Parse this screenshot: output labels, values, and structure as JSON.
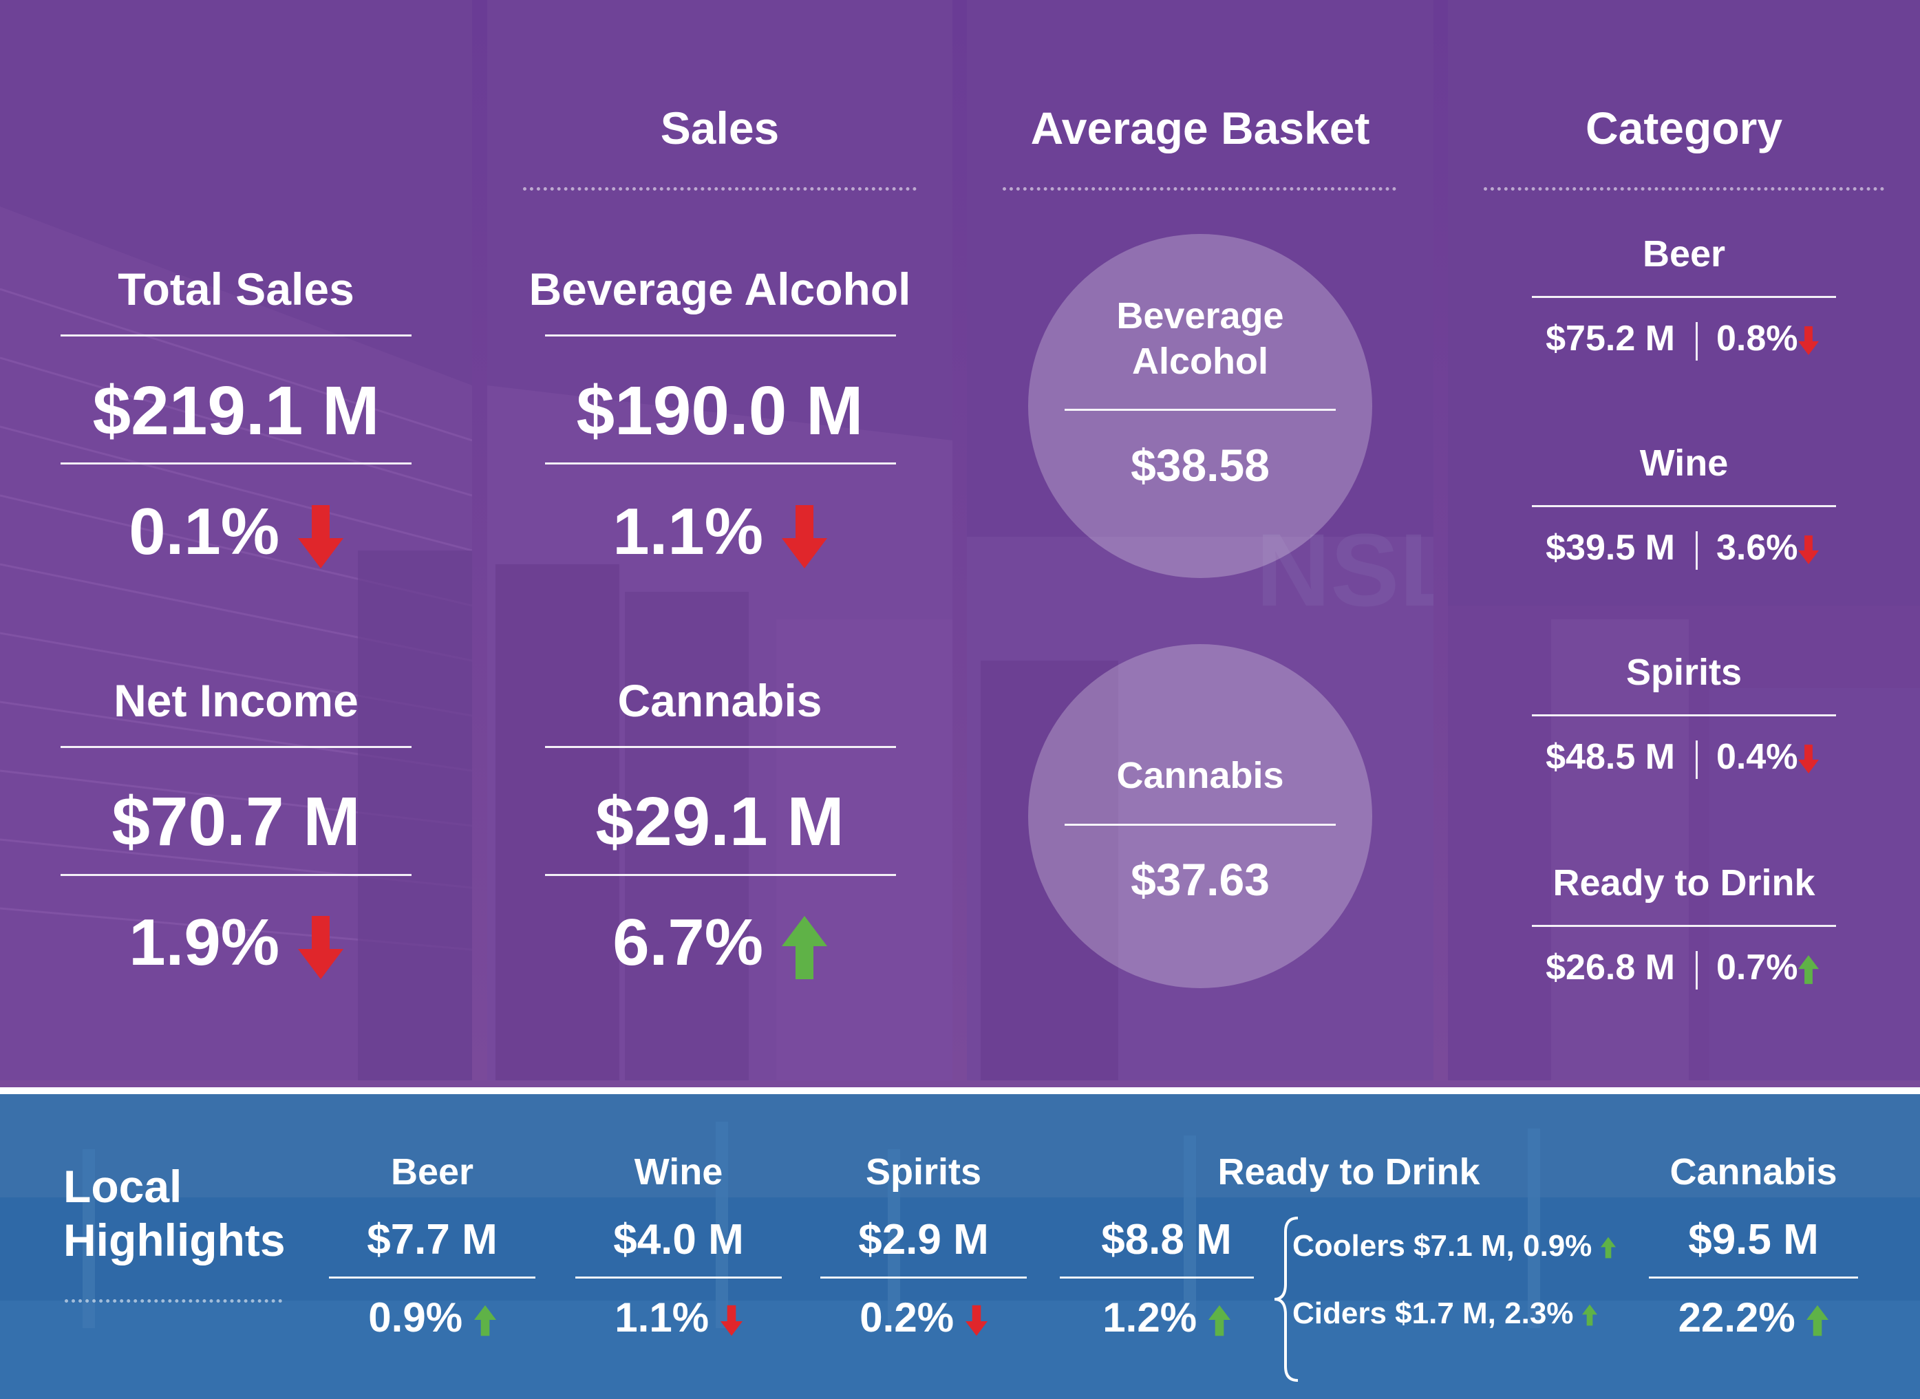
{
  "colors": {
    "purple_panel": "#6d3f96",
    "blue_band": "#2e6aa8",
    "down_arrow": "#e0262b",
    "up_arrow": "#5fb247",
    "divider": "#ffffff"
  },
  "panel1": {
    "total_sales_label": "Total Sales",
    "total_sales_value": "$219.1 M",
    "total_sales_change": "0.1%",
    "total_sales_trend": "down",
    "net_income_label": "Net Income",
    "net_income_value": "$70.7 M",
    "net_income_change": "1.9%",
    "net_income_trend": "down"
  },
  "panel2": {
    "heading": "Sales",
    "bev_label": "Beverage Alcohol",
    "bev_value": "$190.0 M",
    "bev_change": "1.1%",
    "bev_trend": "down",
    "cannabis_label": "Cannabis",
    "cannabis_value": "$29.1 M",
    "cannabis_change": "6.7%",
    "cannabis_trend": "up"
  },
  "panel3": {
    "heading": "Average Basket",
    "bev_label_line1": "Beverage",
    "bev_label_line2": "Alcohol",
    "bev_value": "$38.58",
    "cannabis_label": "Cannabis",
    "cannabis_value": "$37.63"
  },
  "panel4": {
    "heading": "Category",
    "items": [
      {
        "label": "Beer",
        "value": "$75.2 M",
        "change": "0.8%",
        "trend": "down"
      },
      {
        "label": "Wine",
        "value": "$39.5 M",
        "change": "3.6%",
        "trend": "down"
      },
      {
        "label": "Spirits",
        "value": "$48.5 M",
        "change": "0.4%",
        "trend": "down"
      },
      {
        "label": "Ready to Drink",
        "value": "$26.8 M",
        "change": "0.7%",
        "trend": "up"
      }
    ]
  },
  "local": {
    "title_line1": "Local",
    "title_line2": "Highlights",
    "beer": {
      "label": "Beer",
      "value": "$7.7 M",
      "change": "0.9%",
      "trend": "up"
    },
    "wine": {
      "label": "Wine",
      "value": "$4.0 M",
      "change": "1.1%",
      "trend": "down"
    },
    "spirits": {
      "label": "Spirits",
      "value": "$2.9 M",
      "change": "0.2%",
      "trend": "down"
    },
    "rtd": {
      "label": "Ready to Drink",
      "value": "$8.8 M",
      "change": "1.2%",
      "trend": "up",
      "coolers": "Coolers $7.1 M, 0.9%",
      "coolers_trend": "up",
      "ciders": "Ciders $1.7 M, 2.3%",
      "ciders_trend": "up"
    },
    "cannabis": {
      "label": "Cannabis",
      "value": "$9.5 M",
      "change": "22.2%",
      "trend": "up"
    }
  }
}
